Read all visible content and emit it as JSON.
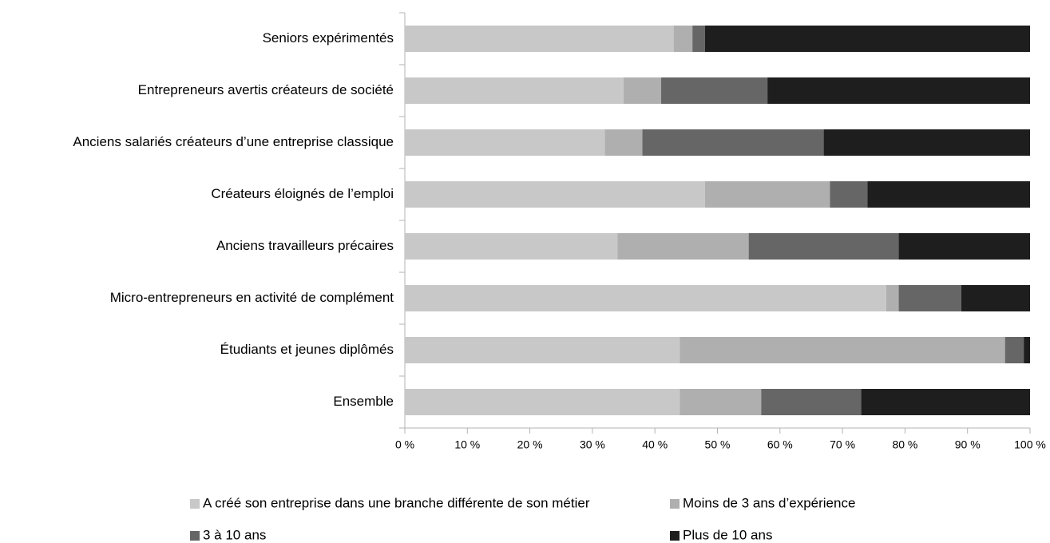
{
  "chart_data": {
    "type": "stacked-bar-horizontal",
    "categories": [
      "Seniors expérimentés",
      "Entrepreneurs avertis créateurs de société",
      "Anciens salariés créateurs d’une entreprise classique",
      "Créateurs éloignés de l’emploi",
      "Anciens travailleurs précaires",
      "Micro-entrepreneurs en activité de complément",
      "Étudiants et jeunes diplômés",
      "Ensemble"
    ],
    "series": [
      {
        "name": "A créé son entreprise dans une branche différente de son métier",
        "color": "#c8c8c8",
        "values": [
          43,
          35,
          32,
          48,
          34,
          77,
          44,
          44
        ]
      },
      {
        "name": "Moins de 3 ans d’expérience",
        "color": "#afafaf",
        "values": [
          3,
          6,
          6,
          20,
          21,
          2,
          52,
          13
        ]
      },
      {
        "name": "3 à 10 ans",
        "color": "#666666",
        "values": [
          2,
          17,
          29,
          6,
          24,
          10,
          3,
          16
        ]
      },
      {
        "name": "Plus de 10 ans",
        "color": "#1e1e1e",
        "values": [
          52,
          42,
          33,
          26,
          21,
          11,
          1,
          27
        ]
      }
    ],
    "xlim": [
      0,
      100
    ],
    "xticks": [
      {
        "value": 0,
        "label": "0 %"
      },
      {
        "value": 10,
        "label": "10 %"
      },
      {
        "value": 20,
        "label": "20 %"
      },
      {
        "value": 30,
        "label": "30 %"
      },
      {
        "value": 40,
        "label": "40 %"
      },
      {
        "value": 50,
        "label": "50 %"
      },
      {
        "value": 60,
        "label": "60 %"
      },
      {
        "value": 70,
        "label": "70 %"
      },
      {
        "value": 80,
        "label": "80 %"
      },
      {
        "value": 90,
        "label": "90 %"
      },
      {
        "value": 100,
        "label": "100 %"
      }
    ],
    "grid": false
  }
}
